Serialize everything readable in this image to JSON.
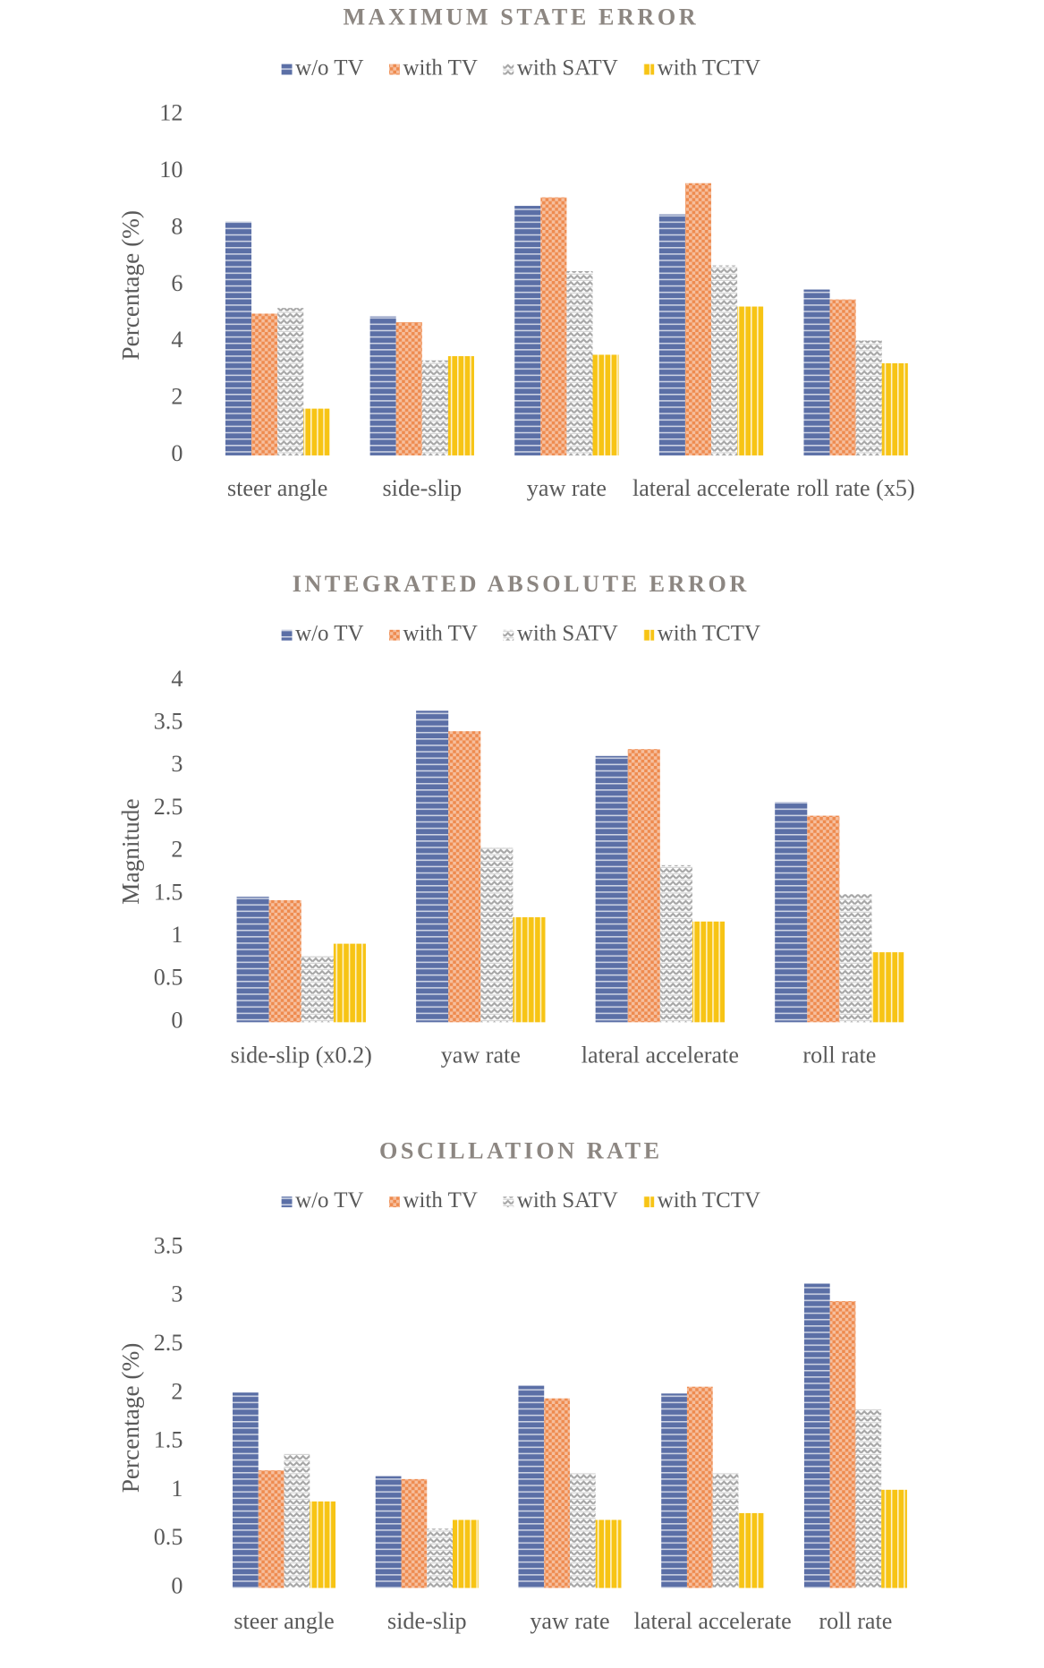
{
  "chart_data": [
    {
      "type": "bar",
      "title": "MAXIMUM STATE ERROR",
      "y_label": "Percentage (%)",
      "categories": [
        "steer angle",
        "side-slip",
        "yaw rate",
        "lateral accelerate",
        "roll rate (x5)"
      ],
      "series": [
        {
          "name": "w/o TV",
          "color": "#5b6fa6",
          "values": [
            8.25,
            4.9,
            8.8,
            8.5,
            5.85
          ]
        },
        {
          "name": "with TV",
          "color": "#ee8b4f",
          "values": [
            5.0,
            4.7,
            9.1,
            9.6,
            5.5
          ]
        },
        {
          "name": "with SATV",
          "color": "#a6a6a6",
          "values": [
            5.2,
            3.35,
            6.5,
            6.7,
            4.05
          ]
        },
        {
          "name": "with TCTV",
          "color": "#f7c415",
          "values": [
            1.65,
            3.5,
            3.55,
            5.25,
            3.25
          ]
        }
      ],
      "ylim": [
        0,
        12
      ],
      "yticks": [
        0,
        2,
        4,
        6,
        8,
        10,
        12
      ],
      "legend": "top"
    },
    {
      "type": "bar",
      "title": "INTEGRATED ABSOLUTE ERROR",
      "y_label": "Magnitude",
      "categories": [
        "side-slip (x0.2)",
        "yaw rate",
        "lateral accelerate",
        "roll rate"
      ],
      "series": [
        {
          "name": "w/o TV",
          "color": "#5b6fa6",
          "values": [
            1.47,
            3.65,
            3.12,
            2.58
          ]
        },
        {
          "name": "with TV",
          "color": "#ee8b4f",
          "values": [
            1.43,
            3.41,
            3.2,
            2.42
          ]
        },
        {
          "name": "with SATV",
          "color": "#a6a6a6",
          "values": [
            0.78,
            2.05,
            1.84,
            1.5
          ]
        },
        {
          "name": "with TCTV",
          "color": "#f7c415",
          "values": [
            0.92,
            1.23,
            1.18,
            0.82
          ]
        }
      ],
      "ylim": [
        0,
        4
      ],
      "yticks": [
        0,
        0.5,
        1,
        1.5,
        2,
        2.5,
        3,
        3.5,
        4
      ],
      "legend": "top"
    },
    {
      "type": "bar",
      "title": "OSCILLATION RATE",
      "y_label": "Percentage (%)",
      "categories": [
        "steer angle",
        "side-slip",
        "yaw rate",
        "lateral accelerate",
        "roll rate"
      ],
      "series": [
        {
          "name": "w/o TV",
          "color": "#5b6fa6",
          "values": [
            2.01,
            1.15,
            2.08,
            2.0,
            3.13
          ]
        },
        {
          "name": "with TV",
          "color": "#ee8b4f",
          "values": [
            1.21,
            1.12,
            1.95,
            2.07,
            2.95
          ]
        },
        {
          "name": "with SATV",
          "color": "#a6a6a6",
          "values": [
            1.38,
            0.61,
            1.18,
            1.18,
            1.84
          ]
        },
        {
          "name": "with TCTV",
          "color": "#f7c415",
          "values": [
            0.89,
            0.7,
            0.7,
            0.77,
            1.01
          ]
        }
      ],
      "ylim": [
        0,
        3.5
      ],
      "yticks": [
        0,
        0.5,
        1,
        1.5,
        2,
        2.5,
        3,
        3.5
      ],
      "legend": "top"
    }
  ]
}
